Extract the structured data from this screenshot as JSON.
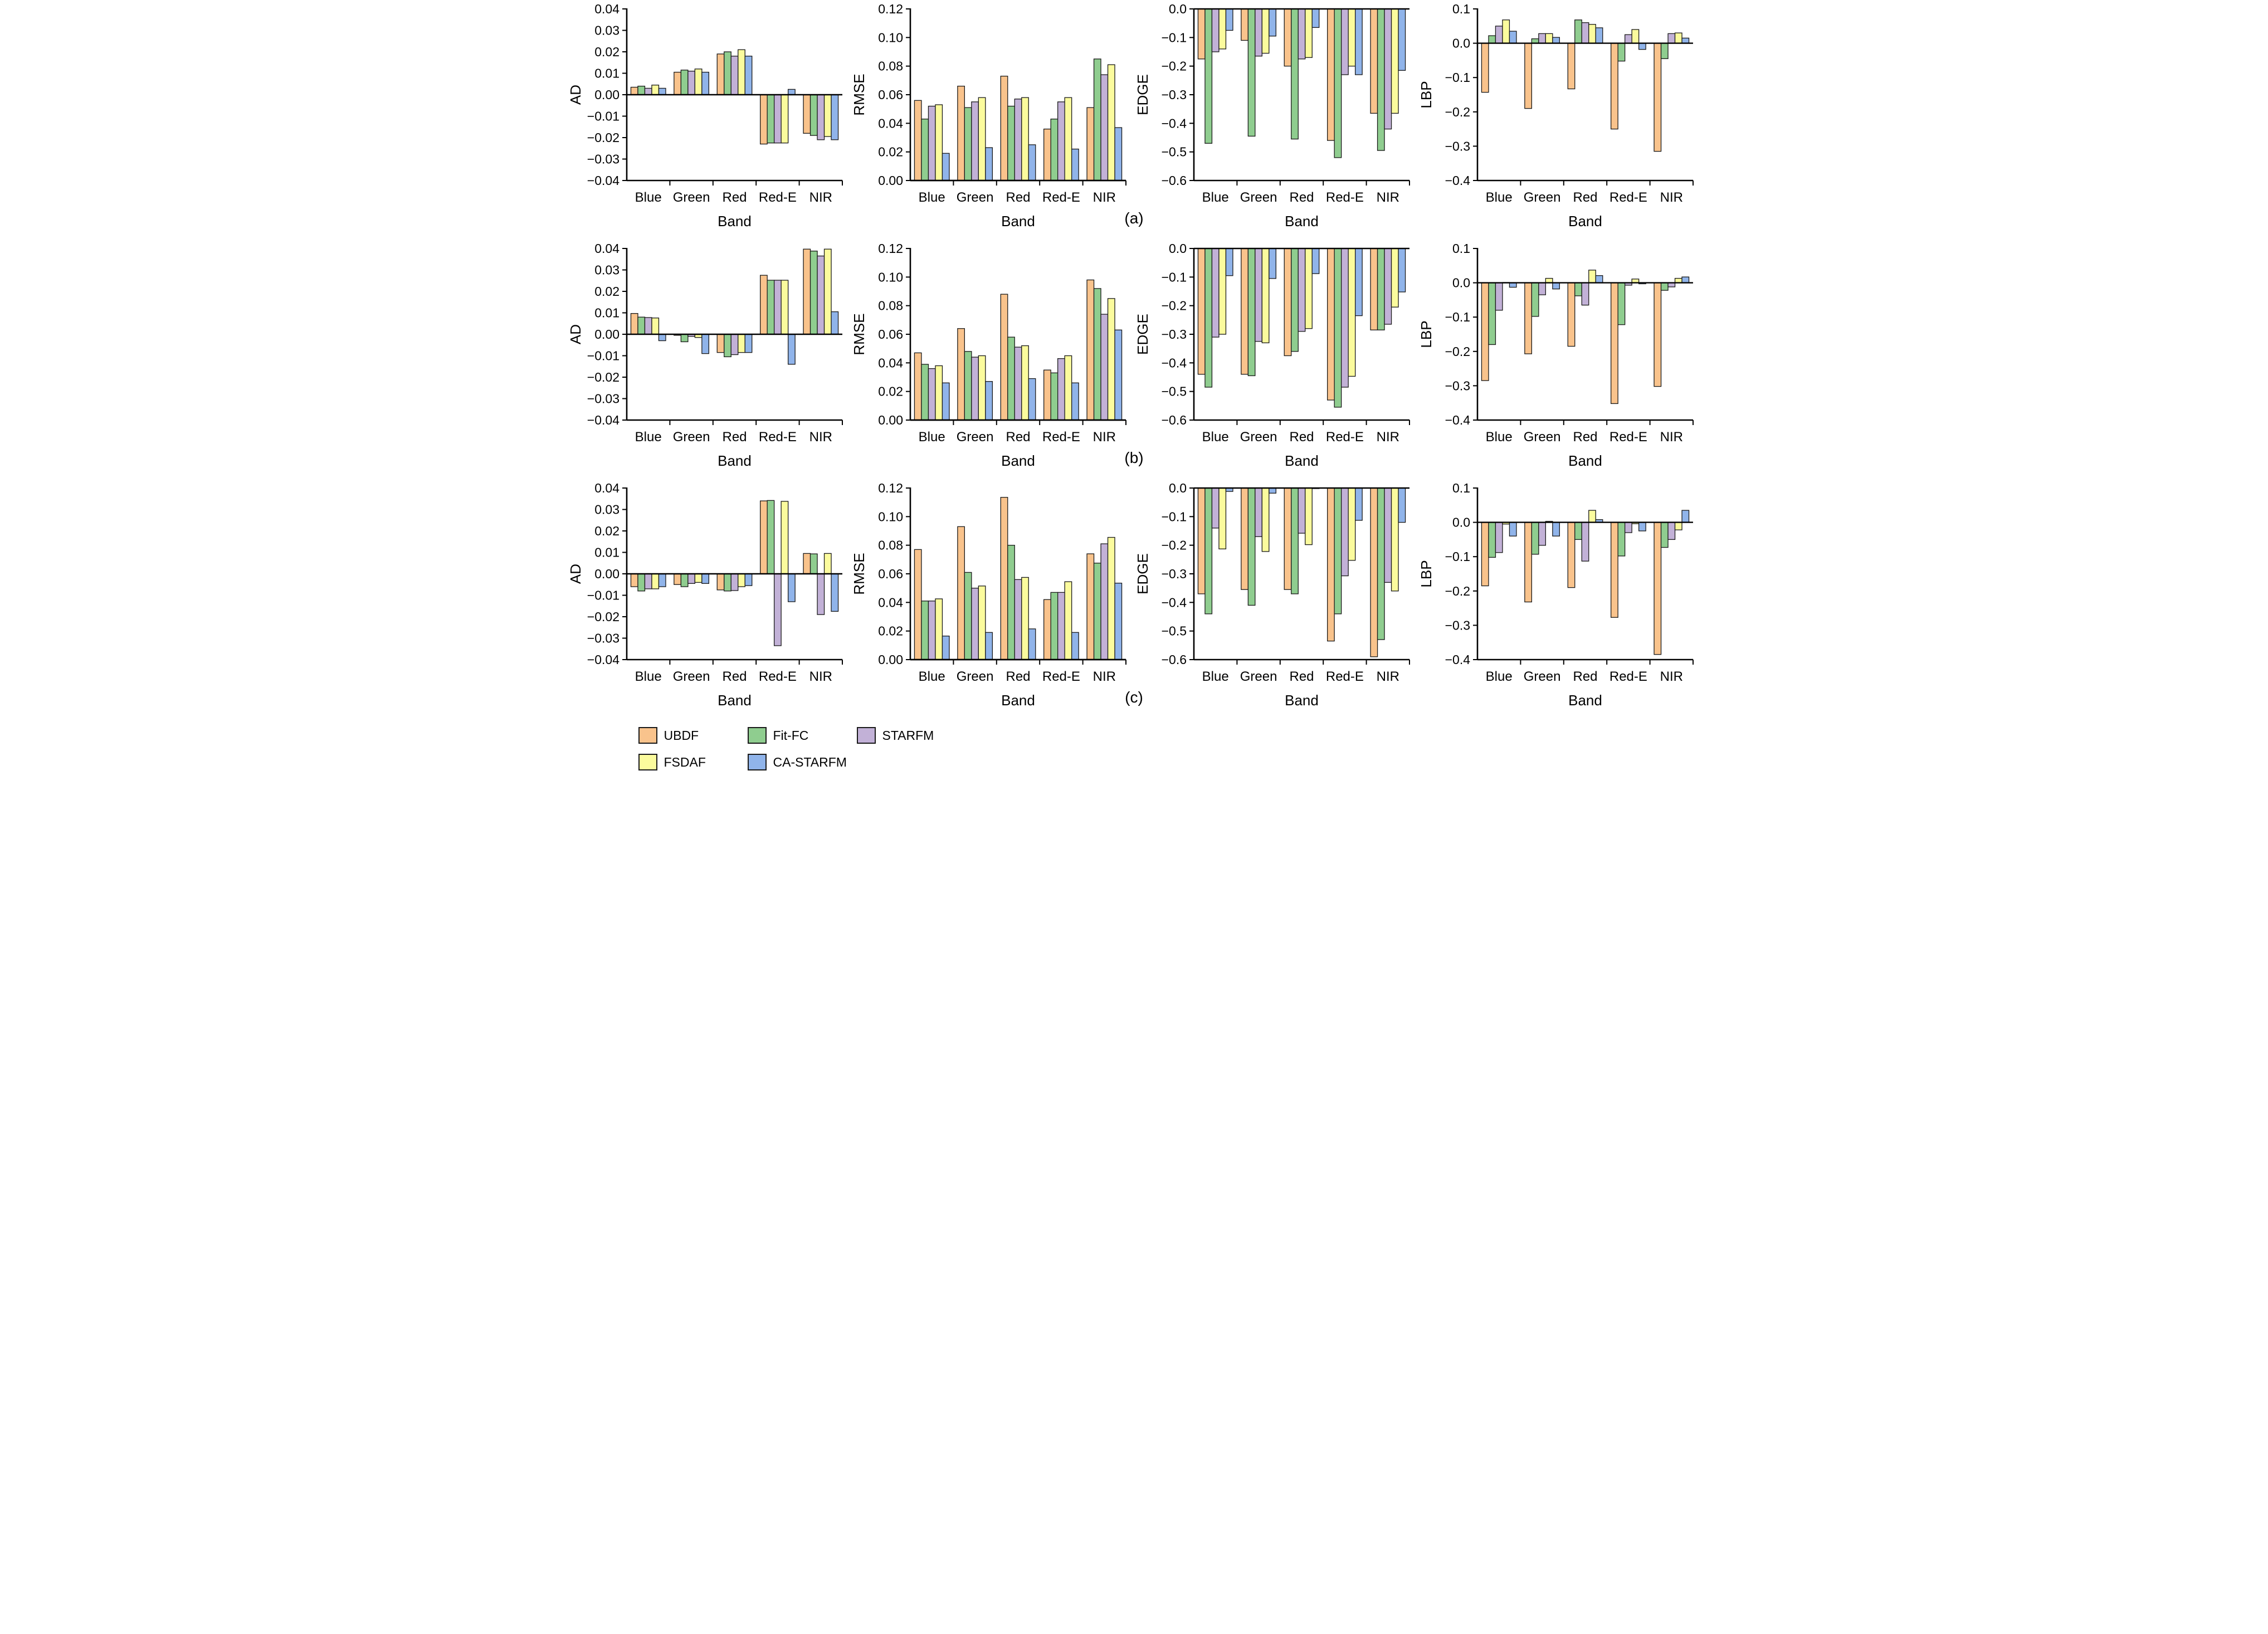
{
  "figure": {
    "xlabel": "Band",
    "row_labels": [
      "(a)",
      "(b)",
      "(c)"
    ]
  },
  "bands": [
    "Blue",
    "Green",
    "Red",
    "Red-E",
    "NIR"
  ],
  "methods": [
    {
      "name": "UBDF",
      "color": "#F9C38C"
    },
    {
      "name": "Fit-FC",
      "color": "#8FCD8F"
    },
    {
      "name": "STARFM",
      "color": "#C2B1D7"
    },
    {
      "name": "FSDAF",
      "color": "#FBFB9D"
    },
    {
      "name": "CA-STARFM",
      "color": "#90B4EA"
    }
  ],
  "chart_data": [
    {
      "id": "a-AD",
      "type": "bar",
      "row": "(a)",
      "title": "",
      "xlabel": "Band",
      "ylabel": "AD",
      "ylim": [
        -0.04,
        0.04
      ],
      "ytick_step": 0.01,
      "ydecimals": 2,
      "grid": false,
      "categories": [
        "Blue",
        "Green",
        "Red",
        "Red-E",
        "NIR"
      ],
      "series": [
        {
          "name": "UBDF",
          "values": [
            0.0035,
            0.0105,
            0.019,
            -0.023,
            -0.018
          ]
        },
        {
          "name": "Fit-FC",
          "values": [
            0.004,
            0.0115,
            0.02,
            -0.0225,
            -0.019
          ]
        },
        {
          "name": "STARFM",
          "values": [
            0.003,
            0.011,
            0.018,
            -0.0225,
            -0.021
          ]
        },
        {
          "name": "FSDAF",
          "values": [
            0.0045,
            0.012,
            0.021,
            -0.0225,
            -0.0195
          ]
        },
        {
          "name": "CA-STARFM",
          "values": [
            0.003,
            0.0105,
            0.018,
            0.0025,
            -0.021
          ]
        }
      ]
    },
    {
      "id": "a-RMSE",
      "type": "bar",
      "row": "(a)",
      "title": "",
      "xlabel": "Band",
      "ylabel": "RMSE",
      "ylim": [
        0,
        0.12
      ],
      "ytick_step": 0.02,
      "ydecimals": 2,
      "grid": false,
      "categories": [
        "Blue",
        "Green",
        "Red",
        "Red-E",
        "NIR"
      ],
      "series": [
        {
          "name": "UBDF",
          "values": [
            0.056,
            0.066,
            0.073,
            0.036,
            0.051
          ]
        },
        {
          "name": "Fit-FC",
          "values": [
            0.043,
            0.051,
            0.052,
            0.043,
            0.085
          ]
        },
        {
          "name": "STARFM",
          "values": [
            0.052,
            0.055,
            0.057,
            0.055,
            0.074
          ]
        },
        {
          "name": "FSDAF",
          "values": [
            0.053,
            0.058,
            0.058,
            0.058,
            0.081
          ]
        },
        {
          "name": "CA-STARFM",
          "values": [
            0.019,
            0.023,
            0.025,
            0.022,
            0.037
          ]
        }
      ]
    },
    {
      "id": "a-EDGE",
      "type": "bar",
      "row": "(a)",
      "title": "",
      "xlabel": "Band",
      "ylabel": "EDGE",
      "ylim": [
        -0.6,
        0.0
      ],
      "ytick_step": 0.1,
      "ydecimals": 1,
      "grid": false,
      "categories": [
        "Blue",
        "Green",
        "Red",
        "Red-E",
        "NIR"
      ],
      "series": [
        {
          "name": "UBDF",
          "values": [
            -0.175,
            -0.11,
            -0.2,
            -0.46,
            -0.365
          ]
        },
        {
          "name": "Fit-FC",
          "values": [
            -0.47,
            -0.445,
            -0.455,
            -0.52,
            -0.495
          ]
        },
        {
          "name": "STARFM",
          "values": [
            -0.15,
            -0.165,
            -0.175,
            -0.23,
            -0.42
          ]
        },
        {
          "name": "FSDAF",
          "values": [
            -0.14,
            -0.155,
            -0.17,
            -0.2,
            -0.365
          ]
        },
        {
          "name": "CA-STARFM",
          "values": [
            -0.075,
            -0.095,
            -0.065,
            -0.23,
            -0.215
          ]
        }
      ]
    },
    {
      "id": "a-LBP",
      "type": "bar",
      "row": "(a)",
      "title": "",
      "xlabel": "Band",
      "ylabel": "LBP",
      "ylim": [
        -0.4,
        0.1
      ],
      "ytick_step": 0.1,
      "ydecimals": 1,
      "grid": false,
      "categories": [
        "Blue",
        "Green",
        "Red",
        "Red-E",
        "NIR"
      ],
      "series": [
        {
          "name": "UBDF",
          "values": [
            -0.143,
            -0.19,
            -0.133,
            -0.25,
            -0.315
          ]
        },
        {
          "name": "Fit-FC",
          "values": [
            0.022,
            0.013,
            0.068,
            -0.052,
            -0.045
          ]
        },
        {
          "name": "STARFM",
          "values": [
            0.05,
            0.028,
            0.06,
            0.025,
            0.028
          ]
        },
        {
          "name": "FSDAF",
          "values": [
            0.068,
            0.028,
            0.055,
            0.04,
            0.03
          ]
        },
        {
          "name": "CA-STARFM",
          "values": [
            0.035,
            0.017,
            0.045,
            -0.018,
            0.015
          ]
        }
      ]
    },
    {
      "id": "b-AD",
      "type": "bar",
      "row": "(b)",
      "title": "",
      "xlabel": "Band",
      "ylabel": "AD",
      "ylim": [
        -0.04,
        0.04
      ],
      "ytick_step": 0.01,
      "ydecimals": 2,
      "grid": false,
      "categories": [
        "Blue",
        "Green",
        "Red",
        "Red-E",
        "NIR"
      ],
      "series": [
        {
          "name": "UBDF",
          "values": [
            0.0097,
            -0.0005,
            -0.0085,
            0.0275,
            0.0397
          ]
        },
        {
          "name": "Fit-FC",
          "values": [
            0.008,
            -0.0035,
            -0.0105,
            0.0252,
            0.0388
          ]
        },
        {
          "name": "STARFM",
          "values": [
            0.0078,
            -0.001,
            -0.0095,
            0.0252,
            0.0365
          ]
        },
        {
          "name": "FSDAF",
          "values": [
            0.0076,
            -0.0015,
            -0.0085,
            0.0252,
            0.0397
          ]
        },
        {
          "name": "CA-STARFM",
          "values": [
            -0.003,
            -0.009,
            -0.0085,
            -0.014,
            0.0105
          ]
        }
      ]
    },
    {
      "id": "b-RMSE",
      "type": "bar",
      "row": "(b)",
      "title": "",
      "xlabel": "Band",
      "ylabel": "RMSE",
      "ylim": [
        0,
        0.12
      ],
      "ytick_step": 0.02,
      "ydecimals": 2,
      "grid": false,
      "categories": [
        "Blue",
        "Green",
        "Red",
        "Red-E",
        "NIR"
      ],
      "series": [
        {
          "name": "UBDF",
          "values": [
            0.047,
            0.064,
            0.088,
            0.035,
            0.098
          ]
        },
        {
          "name": "Fit-FC",
          "values": [
            0.039,
            0.048,
            0.058,
            0.033,
            0.092
          ]
        },
        {
          "name": "STARFM",
          "values": [
            0.036,
            0.044,
            0.051,
            0.043,
            0.074
          ]
        },
        {
          "name": "FSDAF",
          "values": [
            0.038,
            0.045,
            0.052,
            0.045,
            0.085
          ]
        },
        {
          "name": "CA-STARFM",
          "values": [
            0.026,
            0.027,
            0.029,
            0.026,
            0.063
          ]
        }
      ]
    },
    {
      "id": "b-EDGE",
      "type": "bar",
      "row": "(b)",
      "title": "",
      "xlabel": "Band",
      "ylabel": "EDGE",
      "ylim": [
        -0.6,
        0.0
      ],
      "ytick_step": 0.1,
      "ydecimals": 1,
      "grid": false,
      "categories": [
        "Blue",
        "Green",
        "Red",
        "Red-E",
        "NIR"
      ],
      "series": [
        {
          "name": "UBDF",
          "values": [
            -0.44,
            -0.44,
            -0.375,
            -0.53,
            -0.285
          ]
        },
        {
          "name": "Fit-FC",
          "values": [
            -0.485,
            -0.445,
            -0.36,
            -0.555,
            -0.285
          ]
        },
        {
          "name": "STARFM",
          "values": [
            -0.31,
            -0.325,
            -0.29,
            -0.485,
            -0.265
          ]
        },
        {
          "name": "FSDAF",
          "values": [
            -0.3,
            -0.33,
            -0.28,
            -0.447,
            -0.205
          ]
        },
        {
          "name": "CA-STARFM",
          "values": [
            -0.095,
            -0.105,
            -0.088,
            -0.235,
            -0.152
          ]
        }
      ]
    },
    {
      "id": "b-LBP",
      "type": "bar",
      "row": "(b)",
      "title": "",
      "xlabel": "Band",
      "ylabel": "LBP",
      "ylim": [
        -0.4,
        0.1
      ],
      "ytick_step": 0.1,
      "ydecimals": 1,
      "grid": false,
      "categories": [
        "Blue",
        "Green",
        "Red",
        "Red-E",
        "NIR"
      ],
      "series": [
        {
          "name": "UBDF",
          "values": [
            -0.285,
            -0.207,
            -0.185,
            -0.352,
            -0.302
          ]
        },
        {
          "name": "Fit-FC",
          "values": [
            -0.18,
            -0.098,
            -0.038,
            -0.122,
            -0.022
          ]
        },
        {
          "name": "STARFM",
          "values": [
            -0.08,
            -0.035,
            -0.065,
            -0.007,
            -0.012
          ]
        },
        {
          "name": "FSDAF",
          "values": [
            0.001,
            0.013,
            0.037,
            0.011,
            0.013
          ]
        },
        {
          "name": "CA-STARFM",
          "values": [
            -0.013,
            -0.018,
            0.021,
            -0.003,
            0.017
          ]
        }
      ]
    },
    {
      "id": "c-AD",
      "type": "bar",
      "row": "(c)",
      "title": "",
      "xlabel": "Band",
      "ylabel": "AD",
      "ylim": [
        -0.04,
        0.04
      ],
      "ytick_step": 0.01,
      "ydecimals": 2,
      "grid": false,
      "categories": [
        "Blue",
        "Green",
        "Red",
        "Red-E",
        "NIR"
      ],
      "series": [
        {
          "name": "UBDF",
          "values": [
            -0.006,
            -0.005,
            -0.0075,
            0.034,
            0.0095
          ]
        },
        {
          "name": "Fit-FC",
          "values": [
            -0.008,
            -0.006,
            -0.008,
            0.0342,
            0.0093
          ]
        },
        {
          "name": "STARFM",
          "values": [
            -0.007,
            -0.0045,
            -0.0078,
            -0.0335,
            -0.019
          ]
        },
        {
          "name": "FSDAF",
          "values": [
            -0.007,
            -0.004,
            -0.006,
            0.0338,
            0.0095
          ]
        },
        {
          "name": "CA-STARFM",
          "values": [
            -0.006,
            -0.0045,
            -0.0055,
            -0.013,
            -0.0175
          ]
        }
      ]
    },
    {
      "id": "c-RMSE",
      "type": "bar",
      "row": "(c)",
      "title": "",
      "xlabel": "Band",
      "ylabel": "RMSE",
      "ylim": [
        0,
        0.12
      ],
      "ytick_step": 0.02,
      "ydecimals": 2,
      "grid": false,
      "categories": [
        "Blue",
        "Green",
        "Red",
        "Red-E",
        "NIR"
      ],
      "series": [
        {
          "name": "UBDF",
          "values": [
            0.077,
            0.093,
            0.1135,
            0.042,
            0.074
          ]
        },
        {
          "name": "Fit-FC",
          "values": [
            0.041,
            0.061,
            0.08,
            0.047,
            0.0675
          ]
        },
        {
          "name": "STARFM",
          "values": [
            0.041,
            0.05,
            0.056,
            0.047,
            0.081
          ]
        },
        {
          "name": "FSDAF",
          "values": [
            0.0425,
            0.0515,
            0.0575,
            0.0545,
            0.0855
          ]
        },
        {
          "name": "CA-STARFM",
          "values": [
            0.0165,
            0.019,
            0.0215,
            0.019,
            0.0535
          ]
        }
      ]
    },
    {
      "id": "c-EDGE",
      "type": "bar",
      "row": "(c)",
      "title": "",
      "xlabel": "Band",
      "ylabel": "EDGE",
      "ylim": [
        -0.6,
        0.0
      ],
      "ytick_step": 0.1,
      "ydecimals": 1,
      "grid": false,
      "categories": [
        "Blue",
        "Green",
        "Red",
        "Red-E",
        "NIR"
      ],
      "series": [
        {
          "name": "UBDF",
          "values": [
            -0.37,
            -0.355,
            -0.355,
            -0.535,
            -0.59
          ]
        },
        {
          "name": "Fit-FC",
          "values": [
            -0.44,
            -0.41,
            -0.37,
            -0.44,
            -0.53
          ]
        },
        {
          "name": "STARFM",
          "values": [
            -0.14,
            -0.17,
            -0.158,
            -0.307,
            -0.33
          ]
        },
        {
          "name": "FSDAF",
          "values": [
            -0.213,
            -0.222,
            -0.198,
            -0.253,
            -0.36
          ]
        },
        {
          "name": "CA-STARFM",
          "values": [
            -0.012,
            -0.018,
            -0.002,
            -0.113,
            -0.12
          ]
        }
      ]
    },
    {
      "id": "c-LBP",
      "type": "bar",
      "row": "(c)",
      "title": "",
      "xlabel": "Band",
      "ylabel": "LBP",
      "ylim": [
        -0.4,
        0.1
      ],
      "ytick_step": 0.1,
      "ydecimals": 1,
      "grid": false,
      "categories": [
        "Blue",
        "Green",
        "Red",
        "Red-E",
        "NIR"
      ],
      "series": [
        {
          "name": "UBDF",
          "values": [
            -0.185,
            -0.232,
            -0.19,
            -0.277,
            -0.385
          ]
        },
        {
          "name": "Fit-FC",
          "values": [
            -0.102,
            -0.093,
            -0.05,
            -0.098,
            -0.073
          ]
        },
        {
          "name": "STARFM",
          "values": [
            -0.088,
            -0.067,
            -0.113,
            -0.03,
            -0.05
          ]
        },
        {
          "name": "FSDAF",
          "values": [
            -0.005,
            0.003,
            0.035,
            -0.004,
            -0.022
          ]
        },
        {
          "name": "CA-STARFM",
          "values": [
            -0.04,
            -0.04,
            0.008,
            -0.025,
            0.035
          ]
        }
      ]
    }
  ]
}
